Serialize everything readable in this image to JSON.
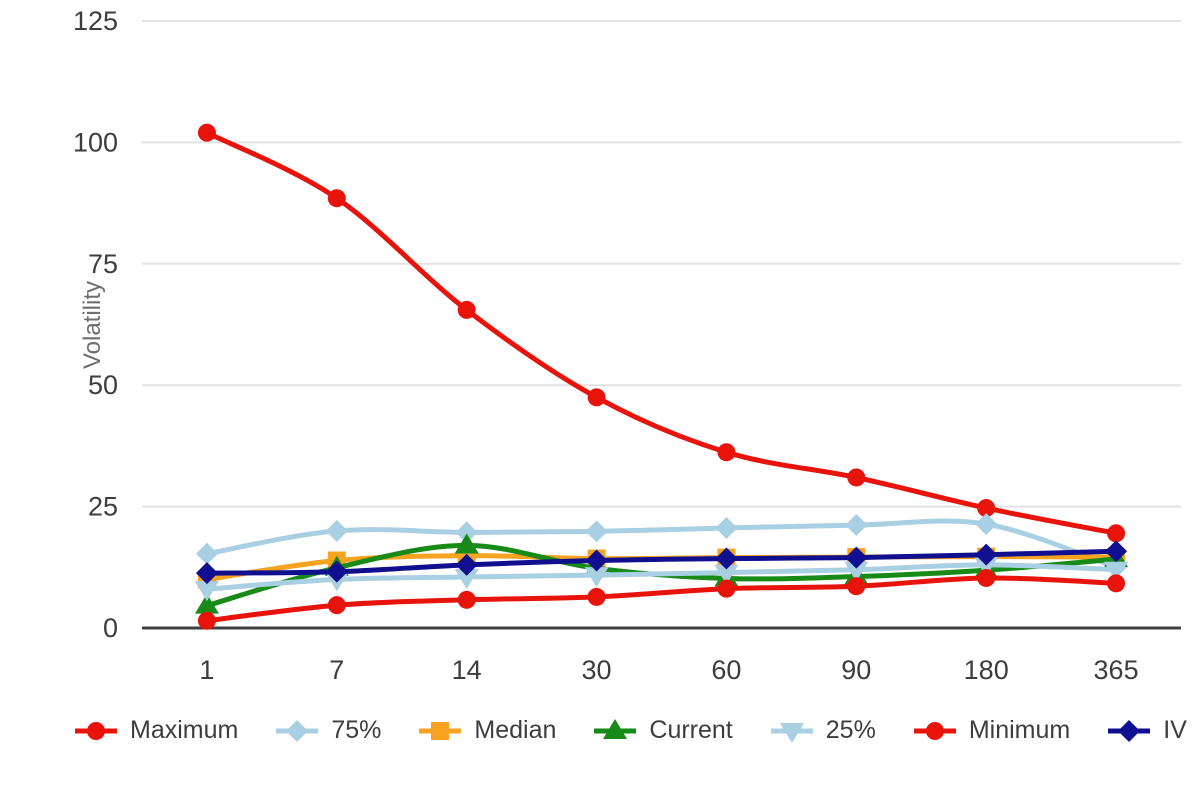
{
  "chart_data": {
    "type": "line",
    "title": "",
    "xlabel": "",
    "ylabel": "Volatility",
    "categories": [
      "1",
      "7",
      "14",
      "30",
      "60",
      "90",
      "180",
      "365"
    ],
    "yticks": [
      0,
      25,
      50,
      75,
      100,
      125
    ],
    "ylim": [
      0,
      125
    ],
    "grid": true,
    "legend_position": "bottom",
    "series": [
      {
        "name": "Maximum",
        "color": "#e8140c",
        "marker": "circle",
        "values": [
          102,
          88.5,
          65.5,
          47.5,
          36.2,
          31,
          24.7,
          19.5
        ]
      },
      {
        "name": "75%",
        "color": "#a9cfe3",
        "marker": "diamond",
        "values": [
          15.3,
          20,
          19.7,
          19.9,
          20.6,
          21.2,
          21.4,
          12.5
        ]
      },
      {
        "name": "Median",
        "color": "#f7a320",
        "marker": "square",
        "values": [
          10,
          13.9,
          14.9,
          14.3,
          14.5,
          14.6,
          14.7,
          14.6
        ]
      },
      {
        "name": "Current",
        "color": "#178a17",
        "marker": "triangle-up",
        "values": [
          4.6,
          12.4,
          17,
          12.3,
          10.2,
          10.6,
          11.9,
          14.2
        ]
      },
      {
        "name": "25%",
        "color": "#a9cfe3",
        "marker": "triangle-down",
        "values": [
          8,
          10,
          10.5,
          10.9,
          11.4,
          12,
          13,
          12
        ]
      },
      {
        "name": "Minimum",
        "color": "#e8140c",
        "marker": "circle",
        "values": [
          1.5,
          4.7,
          5.8,
          6.4,
          8.1,
          8.6,
          10.3,
          9.2
        ]
      },
      {
        "name": "IV",
        "color": "#0f0f8f",
        "marker": "diamond",
        "values": [
          11.3,
          11.6,
          13,
          13.9,
          14.3,
          14.5,
          15.1,
          15.8
        ]
      }
    ]
  },
  "palette": {
    "gridline": "#e2e2e2",
    "axis_line": "#3f3f3f",
    "tick_text": "#3d3d3d",
    "axis_title_text": "#6e6e6e",
    "background": "#ffffff"
  }
}
